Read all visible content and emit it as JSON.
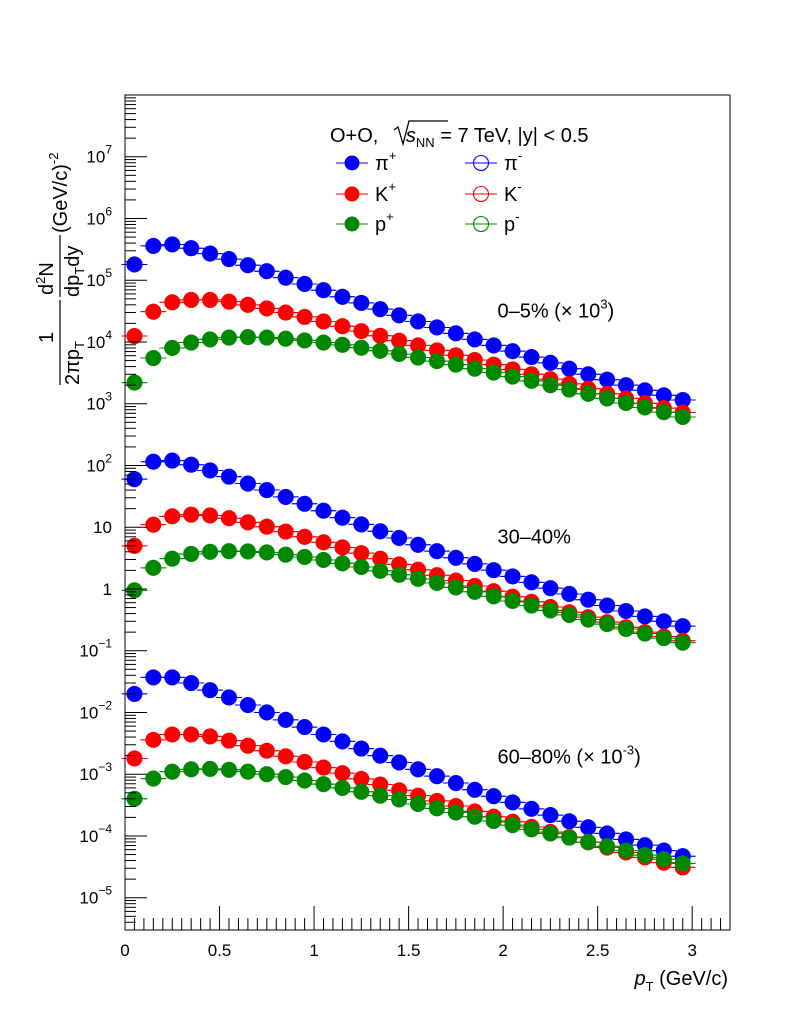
{
  "chart_data": {
    "type": "scatter",
    "title": "O+O, √s_NN = 7 TeV, |y| < 0.5",
    "title_parts": {
      "prefix": "O+O, ",
      "s": "s",
      "sub": "NN",
      "suffix": " = 7 TeV, |y| < 0.5"
    },
    "xlabel": {
      "main": "p",
      "sub": "T",
      "unit": " (GeV/c)"
    },
    "ylabel": {
      "one": "1",
      "d2": "d",
      "two": "2",
      "N": "N",
      "twopi": "2πp",
      "T1": "T",
      "dp": "dp",
      "T2": "T",
      "dy": "dy",
      "unit": "(GeV/c)",
      "exp": "-2"
    },
    "xlim": [
      0,
      3.2
    ],
    "ylim": [
      3e-06,
      100000000
    ],
    "yscale": "log",
    "x_ticks": [
      "0",
      "0.5",
      "1",
      "1.5",
      "2",
      "2.5",
      "3"
    ],
    "y_ticks": [
      {
        "base": "10",
        "exp": "7",
        "v": 10000000
      },
      {
        "base": "10",
        "exp": "6",
        "v": 1000000
      },
      {
        "base": "10",
        "exp": "5",
        "v": 100000
      },
      {
        "base": "10",
        "exp": "4",
        "v": 10000
      },
      {
        "base": "10",
        "exp": "3",
        "v": 1000
      },
      {
        "base": "10",
        "exp": "2",
        "v": 100
      },
      {
        "base": "10",
        "exp": "",
        "v": 10
      },
      {
        "base": "1",
        "exp": "",
        "v": 1
      },
      {
        "base": "10",
        "exp": "−1",
        "v": 0.1
      },
      {
        "base": "10",
        "exp": "−2",
        "v": 0.01
      },
      {
        "base": "10",
        "exp": "−3",
        "v": 0.001
      },
      {
        "base": "10",
        "exp": "−4",
        "v": 0.0001
      },
      {
        "base": "10",
        "exp": "−5",
        "v": 1e-05
      }
    ],
    "legend": [
      {
        "base": "π",
        "sup": "+",
        "color": "#0000ff",
        "filled": true
      },
      {
        "base": "π",
        "sup": "-",
        "color": "#0000ff",
        "filled": false
      },
      {
        "base": "K",
        "sup": "+",
        "color": "#ff0000",
        "filled": true
      },
      {
        "base": "K",
        "sup": "-",
        "color": "#ff0000",
        "filled": false
      },
      {
        "base": "p",
        "sup": "+",
        "color": "#008800",
        "filled": true
      },
      {
        "base": "p",
        "sup": "-",
        "color": "#008800",
        "filled": false
      }
    ],
    "legend_placement": "top-right",
    "annotations": [
      {
        "text": "0–5% (× 10",
        "sup": "3",
        "end": ")",
        "x": 1.97,
        "y": 25000
      },
      {
        "text": "30–40%",
        "sup": "",
        "end": "",
        "x": 1.97,
        "y": 5.5
      },
      {
        "text": "60–80% (× 10",
        "sup": "-3",
        "end": ")",
        "x": 1.97,
        "y": 0.0015
      }
    ],
    "x": [
      0.05,
      0.15,
      0.25,
      0.35,
      0.45,
      0.55,
      0.65,
      0.75,
      0.85,
      0.95,
      1.05,
      1.15,
      1.25,
      1.35,
      1.45,
      1.55,
      1.65,
      1.75,
      1.85,
      1.95,
      2.05,
      2.15,
      2.25,
      2.35,
      2.45,
      2.55,
      2.65,
      2.75,
      2.85,
      2.95
    ],
    "series": [
      {
        "name": "π+ 0–5%",
        "color": "#0000ff",
        "filled": true,
        "values": [
          180000,
          360000,
          380000,
          330000,
          270000,
          220000,
          175000,
          140000,
          110000,
          87000,
          69000,
          54000,
          43000,
          34000,
          27000,
          21500,
          17200,
          13800,
          11000,
          8800,
          7100,
          5700,
          4600,
          3700,
          3000,
          2450,
          2000,
          1650,
          1370,
          1150
        ]
      },
      {
        "name": "π- 0–5%",
        "color": "#0000ff",
        "filled": false,
        "values": [
          180000,
          360000,
          380000,
          330000,
          270000,
          220000,
          175000,
          140000,
          110000,
          87000,
          69000,
          54000,
          43000,
          34000,
          27000,
          21500,
          17200,
          13800,
          11000,
          8800,
          7100,
          5700,
          4600,
          3700,
          3000,
          2450,
          2000,
          1650,
          1370,
          1150
        ]
      },
      {
        "name": "K+ 0–5%",
        "color": "#ff0000",
        "filled": true,
        "values": [
          12500,
          31000,
          44000,
          48000,
          48000,
          45000,
          40000,
          35000,
          30000,
          25500,
          21500,
          18000,
          15000,
          12600,
          10500,
          8800,
          7300,
          6100,
          5100,
          4300,
          3600,
          3000,
          2500,
          2100,
          1750,
          1450,
          1220,
          1020,
          850,
          720
        ]
      },
      {
        "name": "K- 0–5%",
        "color": "#ff0000",
        "filled": false,
        "values": [
          12500,
          31000,
          44000,
          48000,
          48000,
          45000,
          40000,
          35000,
          30000,
          25500,
          21500,
          18000,
          15000,
          12600,
          10500,
          8800,
          7300,
          6100,
          5100,
          4300,
          3600,
          3000,
          2500,
          2100,
          1750,
          1450,
          1220,
          1020,
          850,
          720
        ]
      },
      {
        "name": "p+ 0–5%",
        "color": "#008800",
        "filled": true,
        "values": [
          2200,
          5500,
          8000,
          9800,
          11000,
          11800,
          12000,
          11800,
          11300,
          10600,
          9800,
          9000,
          8100,
          7200,
          6400,
          5600,
          4900,
          4300,
          3700,
          3200,
          2750,
          2350,
          2000,
          1700,
          1450,
          1220,
          1030,
          870,
          730,
          610
        ]
      },
      {
        "name": "p- 0–5%",
        "color": "#008800",
        "filled": false,
        "values": [
          2200,
          5500,
          8000,
          9800,
          11000,
          11800,
          12000,
          11800,
          11300,
          10600,
          9800,
          9000,
          8100,
          7200,
          6400,
          5600,
          4900,
          4300,
          3700,
          3200,
          2750,
          2350,
          2000,
          1700,
          1450,
          1220,
          1030,
          870,
          730,
          610
        ]
      },
      {
        "name": "π+ 30–40%",
        "color": "#0000ff",
        "filled": true,
        "values": [
          60,
          115,
          120,
          103,
          83,
          66,
          51,
          40,
          31,
          24,
          18.5,
          14.3,
          11.1,
          8.6,
          6.7,
          5.2,
          4.1,
          3.2,
          2.55,
          2.02,
          1.6,
          1.28,
          1.03,
          0.83,
          0.67,
          0.54,
          0.44,
          0.36,
          0.3,
          0.25
        ]
      },
      {
        "name": "π- 30–40%",
        "color": "#0000ff",
        "filled": false,
        "values": [
          60,
          115,
          120,
          103,
          83,
          66,
          51,
          40,
          31,
          24,
          18.5,
          14.3,
          11.1,
          8.6,
          6.7,
          5.2,
          4.1,
          3.2,
          2.55,
          2.02,
          1.6,
          1.28,
          1.03,
          0.83,
          0.67,
          0.54,
          0.44,
          0.36,
          0.3,
          0.25
        ]
      },
      {
        "name": "K+ 30–40%",
        "color": "#ff0000",
        "filled": true,
        "values": [
          5,
          11,
          15,
          16,
          15.5,
          14,
          12,
          10.2,
          8.5,
          7,
          5.7,
          4.7,
          3.8,
          3.1,
          2.5,
          2.05,
          1.67,
          1.37,
          1.12,
          0.92,
          0.75,
          0.62,
          0.51,
          0.42,
          0.35,
          0.29,
          0.24,
          0.2,
          0.17,
          0.145
        ]
      },
      {
        "name": "K- 30–40%",
        "color": "#ff0000",
        "filled": false,
        "values": [
          5,
          11,
          15,
          16,
          15.5,
          14,
          12,
          10.2,
          8.5,
          7,
          5.7,
          4.7,
          3.8,
          3.1,
          2.5,
          2.05,
          1.67,
          1.37,
          1.12,
          0.92,
          0.75,
          0.62,
          0.51,
          0.42,
          0.35,
          0.29,
          0.24,
          0.2,
          0.17,
          0.145
        ]
      },
      {
        "name": "p+ 30–40%",
        "color": "#008800",
        "filled": true,
        "values": [
          0.95,
          2.2,
          3.1,
          3.7,
          4,
          4.1,
          4.05,
          3.9,
          3.6,
          3.3,
          2.95,
          2.6,
          2.27,
          1.97,
          1.7,
          1.46,
          1.25,
          1.06,
          0.9,
          0.76,
          0.64,
          0.54,
          0.45,
          0.38,
          0.32,
          0.27,
          0.225,
          0.19,
          0.16,
          0.135
        ]
      },
      {
        "name": "p- 30–40%",
        "color": "#008800",
        "filled": false,
        "values": [
          0.95,
          2.2,
          3.1,
          3.7,
          4,
          4.1,
          4.05,
          3.9,
          3.6,
          3.3,
          2.95,
          2.6,
          2.27,
          1.97,
          1.7,
          1.46,
          1.25,
          1.06,
          0.9,
          0.76,
          0.64,
          0.54,
          0.45,
          0.38,
          0.32,
          0.27,
          0.225,
          0.19,
          0.16,
          0.135
        ]
      },
      {
        "name": "π+ 60–80%",
        "color": "#0000ff",
        "filled": true,
        "values": [
          0.02,
          0.037,
          0.037,
          0.03,
          0.023,
          0.0175,
          0.0132,
          0.01,
          0.0076,
          0.0058,
          0.0044,
          0.0034,
          0.0026,
          0.002,
          0.00155,
          0.0012,
          0.00093,
          0.00072,
          0.00056,
          0.00044,
          0.00035,
          0.000275,
          0.000218,
          0.000173,
          0.000138,
          0.00011,
          8.8e-05,
          7.1e-05,
          5.8e-05,
          4.7e-05
        ]
      },
      {
        "name": "π- 60–80%",
        "color": "#0000ff",
        "filled": false,
        "values": [
          0.02,
          0.037,
          0.037,
          0.03,
          0.023,
          0.0175,
          0.0132,
          0.01,
          0.0076,
          0.0058,
          0.0044,
          0.0034,
          0.0026,
          0.002,
          0.00155,
          0.0012,
          0.00093,
          0.00072,
          0.00056,
          0.00044,
          0.00035,
          0.000275,
          0.000218,
          0.000173,
          0.000138,
          0.00011,
          8.8e-05,
          7.1e-05,
          5.8e-05,
          4.7e-05
        ]
      },
      {
        "name": "K+ 60–80%",
        "color": "#ff0000",
        "filled": true,
        "values": [
          0.0018,
          0.0036,
          0.0044,
          0.0044,
          0.0041,
          0.0035,
          0.0029,
          0.0024,
          0.00195,
          0.00158,
          0.00128,
          0.00104,
          0.00084,
          0.00068,
          0.00055,
          0.00045,
          0.00037,
          0.000305,
          0.00025,
          0.000205,
          0.00017,
          0.00014,
          0.000116,
          9.6e-05,
          7.9e-05,
          6.5e-05,
          5.4e-05,
          4.5e-05,
          3.7e-05,
          3.1e-05
        ]
      },
      {
        "name": "K- 60–80%",
        "color": "#ff0000",
        "filled": false,
        "values": [
          0.0018,
          0.0036,
          0.0044,
          0.0044,
          0.0041,
          0.0035,
          0.0029,
          0.0024,
          0.00195,
          0.00158,
          0.00128,
          0.00104,
          0.00084,
          0.00068,
          0.00055,
          0.00045,
          0.00037,
          0.000305,
          0.00025,
          0.000205,
          0.00017,
          0.00014,
          0.000116,
          9.6e-05,
          7.9e-05,
          6.5e-05,
          5.4e-05,
          4.5e-05,
          3.7e-05,
          3.1e-05
        ]
      },
      {
        "name": "p+ 60–80%",
        "color": "#008800",
        "filled": true,
        "values": [
          0.0004,
          0.00085,
          0.0011,
          0.0012,
          0.00122,
          0.00118,
          0.0011,
          0.001,
          0.0009,
          0.00079,
          0.00069,
          0.0006,
          0.00052,
          0.00045,
          0.00039,
          0.00033,
          0.00028,
          0.00024,
          0.000205,
          0.000175,
          0.00015,
          0.000128,
          0.00011,
          9.4e-05,
          8e-05,
          6.8e-05,
          5.8e-05,
          4.9e-05,
          4.2e-05,
          3.6e-05
        ]
      },
      {
        "name": "p- 60–80%",
        "color": "#008800",
        "filled": false,
        "values": [
          0.0004,
          0.00085,
          0.0011,
          0.0012,
          0.00122,
          0.00118,
          0.0011,
          0.001,
          0.0009,
          0.00079,
          0.00069,
          0.0006,
          0.00052,
          0.00045,
          0.00039,
          0.00033,
          0.00028,
          0.00024,
          0.000205,
          0.000175,
          0.00015,
          0.000128,
          0.00011,
          9.4e-05,
          8e-05,
          6.8e-05,
          5.8e-05,
          4.9e-05,
          4.2e-05,
          3.6e-05
        ]
      }
    ]
  }
}
